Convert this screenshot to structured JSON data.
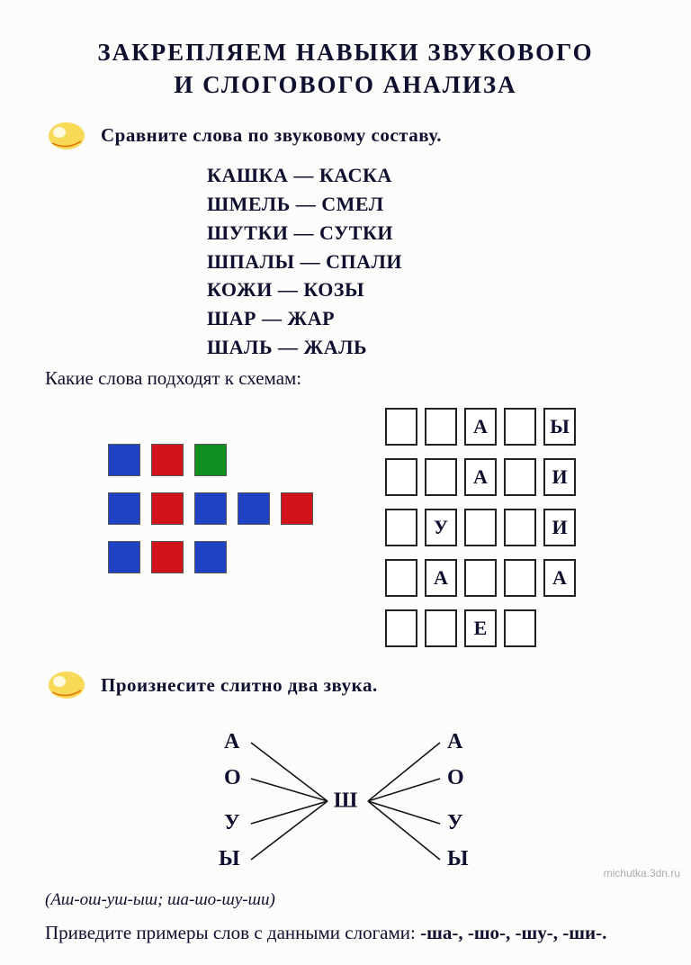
{
  "title_line1": "ЗАКРЕПЛЯЕМ НАВЫКИ ЗВУКОВОГО",
  "title_line2": "И СЛОГОВОГО АНАЛИЗА",
  "task1": "Сравните слова по звуковому составу.",
  "word_pairs": [
    "КАШКА — КАСКА",
    "ШМЕЛЬ — СМЕЛ",
    "ШУТКИ — СУТКИ",
    "ШПАЛЫ — СПАЛИ",
    "КОЖИ — КОЗЫ",
    "ШАР — ЖАР",
    "ШАЛЬ — ЖАЛЬ"
  ],
  "task2": "Какие слова подходят к схемам:",
  "color_schemes": {
    "colors": {
      "blue": "#1e42c3",
      "red": "#d1131c",
      "green": "#109020"
    },
    "rows": [
      [
        "blue",
        "red",
        "green"
      ],
      [
        "blue",
        "red",
        "blue",
        "blue",
        "red"
      ],
      [
        "blue",
        "red",
        "blue"
      ]
    ]
  },
  "letter_schemes": [
    [
      "",
      "",
      "А",
      "",
      "Ы"
    ],
    [
      "",
      "",
      "А",
      "",
      "И"
    ],
    [
      "",
      "У",
      "",
      "",
      "И"
    ],
    [
      "",
      "А",
      "",
      "",
      "А"
    ],
    [
      "",
      "",
      "Е",
      ""
    ]
  ],
  "task3": "Произнесите слитно два звука.",
  "slitno": {
    "center": "Ш",
    "left": [
      "А",
      "О",
      "У",
      "Ы"
    ],
    "right": [
      "А",
      "О",
      "У",
      "Ы"
    ]
  },
  "syllables_hint": "(Аш-ош-уш-ыш;   ша-шо-шу-ши)",
  "task4_pre": "Приведите примеры слов с данными слогами: ",
  "task4_syllables": [
    "-ша-,",
    "-шо-,",
    "-шу-,",
    "-ши-."
  ],
  "watermark": "michutka.3dn.ru"
}
